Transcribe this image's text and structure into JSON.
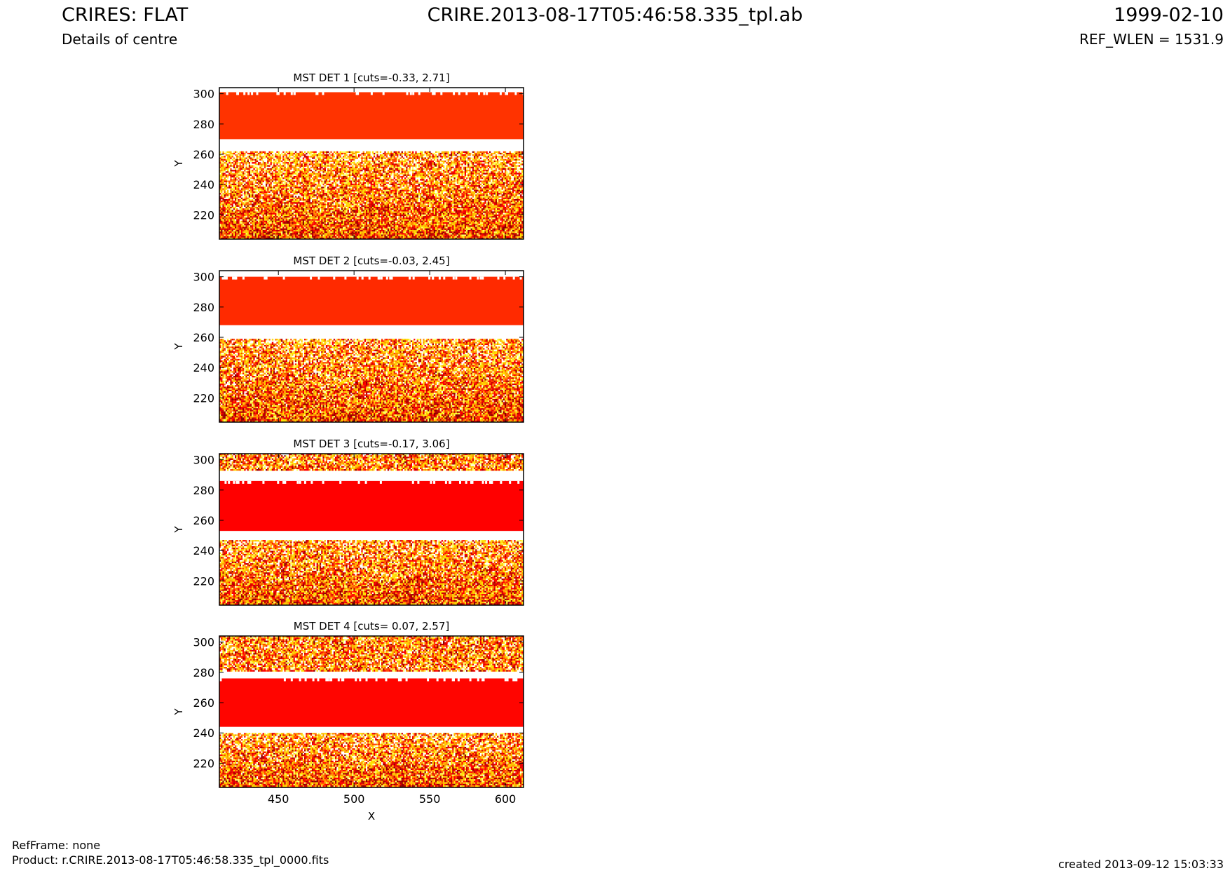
{
  "header": {
    "title_left": "CRIRES: FLAT",
    "subtitle_left": "Details of centre",
    "title_center": "CRIRE.2013-08-17T05:46:58.335_tpl.ab",
    "title_right": "1999-02-10",
    "subtitle_right": "REF_WLEN = 1531.9"
  },
  "footer": {
    "refframe": "RefFrame: none",
    "product": "Product: r.CRIRE.2013-08-17T05:46:58.335_tpl_0000.fits",
    "created": "created 2013-09-12 15:03:33"
  },
  "colors": {
    "band_det1": "#ff3300",
    "band_det2": "#ff2a00",
    "band_det3": "#ff0000",
    "band_det4": "#ff0500",
    "noise": [
      "#8b0000",
      "#b00000",
      "#d40000",
      "#ff0000",
      "#ff4500",
      "#ff8c00",
      "#ffc000",
      "#ffe000",
      "#ffff66",
      "#ffffff"
    ]
  },
  "chart_data": [
    {
      "type": "heatmap",
      "title": "MST DET 1 [cuts=-0.33, 2.71]",
      "xlabel": "",
      "ylabel": "Y",
      "xlim": [
        411,
        612
      ],
      "ylim": [
        204,
        304
      ],
      "xticks": [
        "450",
        "500",
        "550",
        "600"
      ],
      "yticks": [
        "220",
        "240",
        "260",
        "280",
        "300"
      ],
      "bright_band": [
        270,
        301
      ],
      "white_gap": [
        262,
        270
      ],
      "noise_region": [
        204,
        262
      ]
    },
    {
      "type": "heatmap",
      "title": "MST DET 2 [cuts=-0.03, 2.45]",
      "xlabel": "",
      "ylabel": "Y",
      "xlim": [
        411,
        612
      ],
      "ylim": [
        204,
        304
      ],
      "xticks": [
        "450",
        "500",
        "550",
        "600"
      ],
      "yticks": [
        "220",
        "240",
        "260",
        "280",
        "300"
      ],
      "bright_band": [
        268,
        300
      ],
      "white_gap": [
        259,
        268
      ],
      "noise_region": [
        204,
        259
      ]
    },
    {
      "type": "heatmap",
      "title": "MST DET 3 [cuts=-0.17, 3.06]",
      "xlabel": "",
      "ylabel": "Y",
      "xlim": [
        411,
        612
      ],
      "ylim": [
        204,
        304
      ],
      "xticks": [
        "450",
        "500",
        "550",
        "600"
      ],
      "yticks": [
        "220",
        "240",
        "260",
        "280",
        "300"
      ],
      "bright_band": [
        253,
        286
      ],
      "white_gap": [
        247,
        253
      ],
      "upper_gap": [
        286,
        293
      ],
      "noise_region": [
        204,
        247
      ],
      "upper_noise": [
        293,
        304
      ]
    },
    {
      "type": "heatmap",
      "title": "MST DET 4 [cuts= 0.07, 2.57]",
      "xlabel": "X",
      "ylabel": "Y",
      "xlim": [
        411,
        612
      ],
      "ylim": [
        204,
        304
      ],
      "xticks": [
        "450",
        "500",
        "550",
        "600"
      ],
      "yticks": [
        "220",
        "240",
        "260",
        "280",
        "300"
      ],
      "bright_band": [
        244,
        276
      ],
      "white_gap": [
        240,
        244
      ],
      "upper_gap": [
        276,
        281
      ],
      "noise_region": [
        204,
        240
      ],
      "upper_noise": [
        281,
        304
      ]
    }
  ]
}
